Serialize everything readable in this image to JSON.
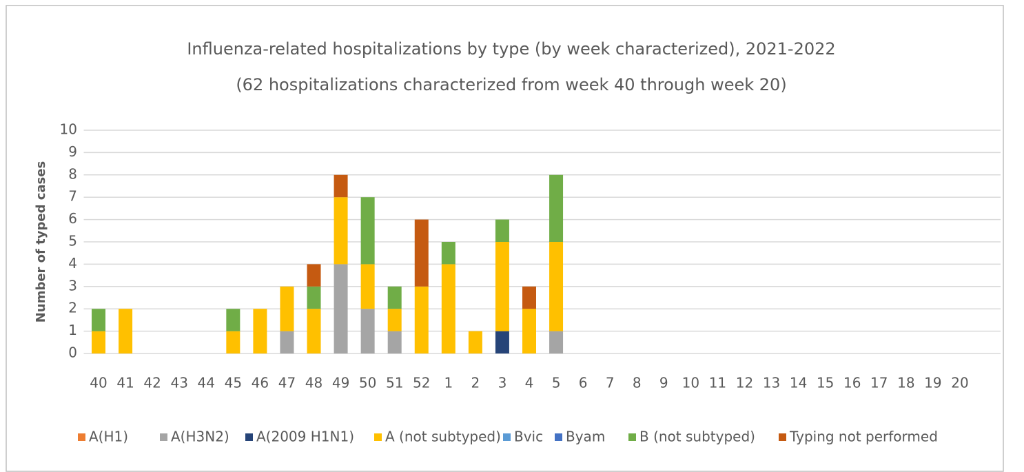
{
  "chart_data": {
    "type": "stacked_bar",
    "title": "Influenza-related hospitalizations by type (by week characterized), 2021-2022",
    "subtitle": "(62 hospitalizations characterized from week 40 through week 20)",
    "y_label": "Number of typed cases",
    "categories": [
      "40",
      "41",
      "42",
      "43",
      "44",
      "45",
      "46",
      "47",
      "48",
      "49",
      "50",
      "51",
      "52",
      "1",
      "2",
      "3",
      "4",
      "5",
      "6",
      "7",
      "8",
      "9",
      "10",
      "11",
      "12",
      "13",
      "14",
      "15",
      "16",
      "17",
      "18",
      "19",
      "20"
    ],
    "series": [
      {
        "name": "A(H1)",
        "color": "#ed7d31",
        "values": [
          0,
          0,
          0,
          0,
          0,
          0,
          0,
          0,
          0,
          0,
          0,
          0,
          0,
          0,
          0,
          0,
          0,
          0,
          0,
          0,
          0,
          0,
          0,
          0,
          0,
          0,
          0,
          0,
          0,
          0,
          0,
          0,
          0
        ]
      },
      {
        "name": "A(H3N2)",
        "color": "#a5a5a5",
        "values": [
          0,
          0,
          0,
          0,
          0,
          0,
          0,
          1,
          0,
          4,
          2,
          1,
          0,
          0,
          0,
          0,
          0,
          1,
          0,
          0,
          0,
          0,
          0,
          0,
          0,
          0,
          0,
          0,
          0,
          0,
          0,
          0,
          0
        ]
      },
      {
        "name": "A(2009 H1N1)",
        "color": "#264478",
        "values": [
          0,
          0,
          0,
          0,
          0,
          0,
          0,
          0,
          0,
          0,
          0,
          0,
          0,
          0,
          0,
          1,
          0,
          0,
          0,
          0,
          0,
          0,
          0,
          0,
          0,
          0,
          0,
          0,
          0,
          0,
          0,
          0,
          0
        ]
      },
      {
        "name": "A (not subtyped)",
        "color": "#ffc000",
        "values": [
          1,
          2,
          0,
          0,
          0,
          1,
          2,
          2,
          2,
          3,
          2,
          1,
          3,
          4,
          1,
          4,
          2,
          4,
          0,
          0,
          0,
          0,
          0,
          0,
          0,
          0,
          0,
          0,
          0,
          0,
          0,
          0,
          0
        ]
      },
      {
        "name": "Bvic",
        "color": "#5b9bd5",
        "values": [
          0,
          0,
          0,
          0,
          0,
          0,
          0,
          0,
          0,
          0,
          0,
          0,
          0,
          0,
          0,
          0,
          0,
          0,
          0,
          0,
          0,
          0,
          0,
          0,
          0,
          0,
          0,
          0,
          0,
          0,
          0,
          0,
          0
        ]
      },
      {
        "name": "Byam",
        "color": "#4472c4",
        "values": [
          0,
          0,
          0,
          0,
          0,
          0,
          0,
          0,
          0,
          0,
          0,
          0,
          0,
          0,
          0,
          0,
          0,
          0,
          0,
          0,
          0,
          0,
          0,
          0,
          0,
          0,
          0,
          0,
          0,
          0,
          0,
          0,
          0
        ]
      },
      {
        "name": "B (not subtyped)",
        "color": "#70ad47",
        "values": [
          1,
          0,
          0,
          0,
          0,
          1,
          0,
          0,
          1,
          0,
          3,
          1,
          0,
          1,
          0,
          1,
          0,
          3,
          0,
          0,
          0,
          0,
          0,
          0,
          0,
          0,
          0,
          0,
          0,
          0,
          0,
          0,
          0
        ]
      },
      {
        "name": "Typing not performed",
        "color": "#c55a11",
        "values": [
          0,
          0,
          0,
          0,
          0,
          0,
          0,
          0,
          1,
          1,
          0,
          0,
          3,
          0,
          0,
          0,
          1,
          0,
          0,
          0,
          0,
          0,
          0,
          0,
          0,
          0,
          0,
          0,
          0,
          0,
          0,
          0,
          0
        ]
      }
    ],
    "ylim": [
      0,
      10
    ],
    "yticks": [
      0,
      1,
      2,
      3,
      4,
      5,
      6,
      7,
      8,
      9,
      10
    ],
    "grid": true,
    "legend": "bottom"
  }
}
